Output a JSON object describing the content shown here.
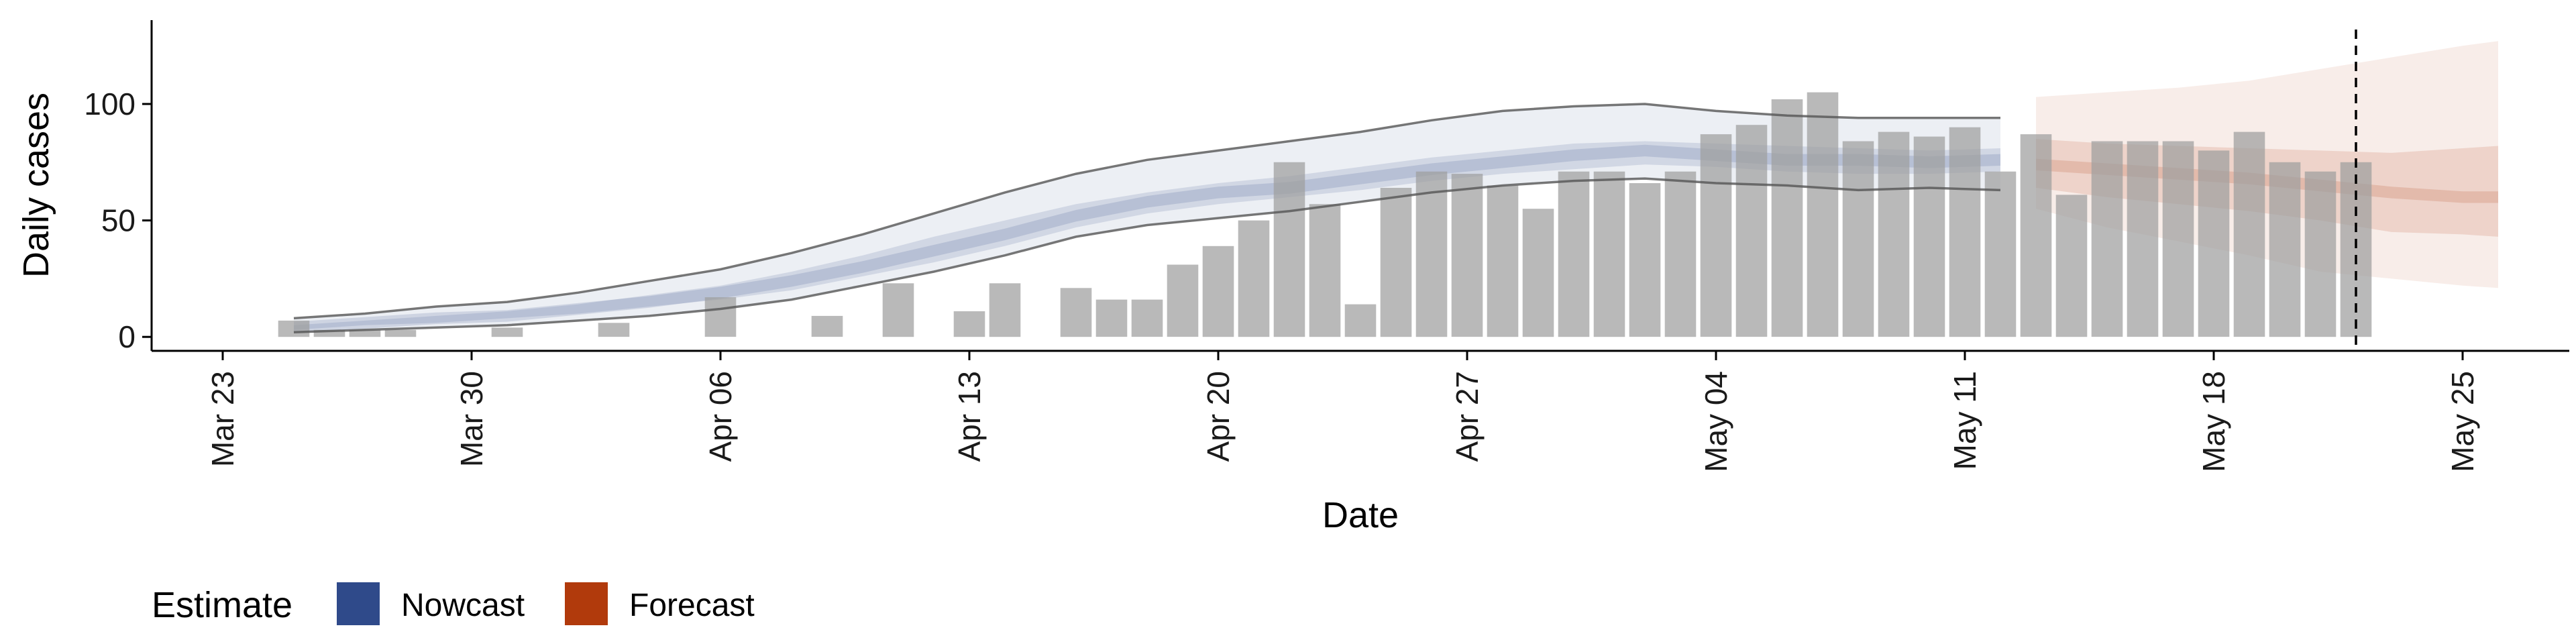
{
  "chart_data": {
    "type": "bar",
    "xlabel": "Date",
    "ylabel": "Daily cases",
    "xlim": [
      "2020-03-21",
      "2020-05-28"
    ],
    "ylim": [
      -6,
      136
    ],
    "y_ticks": [
      0,
      50,
      100
    ],
    "x_ticks": [
      {
        "date": "2020-03-23",
        "label": "Mar 23"
      },
      {
        "date": "2020-03-30",
        "label": "Mar 30"
      },
      {
        "date": "2020-04-06",
        "label": "Apr 06"
      },
      {
        "date": "2020-04-13",
        "label": "Apr 13"
      },
      {
        "date": "2020-04-20",
        "label": "Apr 20"
      },
      {
        "date": "2020-04-27",
        "label": "Apr 27"
      },
      {
        "date": "2020-05-04",
        "label": "May 04"
      },
      {
        "date": "2020-05-11",
        "label": "May 11"
      },
      {
        "date": "2020-05-18",
        "label": "May 18"
      },
      {
        "date": "2020-05-25",
        "label": "May 25"
      }
    ],
    "grid": false,
    "legend_position": "bottom-left",
    "reference_line_date": "2020-05-22",
    "reported_cases": {
      "dates": [
        "2020-03-25",
        "2020-03-26",
        "2020-03-27",
        "2020-03-28",
        "2020-03-29",
        "2020-03-30",
        "2020-03-31",
        "2020-04-01",
        "2020-04-02",
        "2020-04-03",
        "2020-04-04",
        "2020-04-05",
        "2020-04-06",
        "2020-04-07",
        "2020-04-08",
        "2020-04-09",
        "2020-04-10",
        "2020-04-11",
        "2020-04-12",
        "2020-04-13",
        "2020-04-14",
        "2020-04-15",
        "2020-04-16",
        "2020-04-17",
        "2020-04-18",
        "2020-04-19",
        "2020-04-20",
        "2020-04-21",
        "2020-04-22",
        "2020-04-23",
        "2020-04-24",
        "2020-04-25",
        "2020-04-26",
        "2020-04-27",
        "2020-04-28",
        "2020-04-29",
        "2020-04-30",
        "2020-05-01",
        "2020-05-02",
        "2020-05-03",
        "2020-05-04",
        "2020-05-05",
        "2020-05-06",
        "2020-05-07",
        "2020-05-08",
        "2020-05-09",
        "2020-05-10",
        "2020-05-11",
        "2020-05-12",
        "2020-05-13",
        "2020-05-14",
        "2020-05-15",
        "2020-05-16",
        "2020-05-17",
        "2020-05-18",
        "2020-05-19",
        "2020-05-20",
        "2020-05-21",
        "2020-05-22"
      ],
      "values": [
        7,
        3,
        3,
        3,
        0,
        0,
        4,
        0,
        0,
        6,
        0,
        0,
        17,
        0,
        0,
        9,
        0,
        23,
        0,
        11,
        23,
        0,
        21,
        16,
        16,
        31,
        39,
        50,
        75,
        57,
        14,
        64,
        71,
        70,
        65,
        55,
        71,
        71,
        66,
        71,
        87,
        91,
        102,
        105,
        84,
        88,
        86,
        90,
        71,
        87,
        61,
        84,
        84,
        84,
        80,
        88,
        75,
        71,
        75
      ]
    },
    "estimates": [
      {
        "name": "Nowcast",
        "color": "#2f4a8a",
        "dates": [
          "2020-03-25",
          "2020-03-27",
          "2020-03-29",
          "2020-03-31",
          "2020-04-02",
          "2020-04-04",
          "2020-04-06",
          "2020-04-08",
          "2020-04-10",
          "2020-04-12",
          "2020-04-14",
          "2020-04-16",
          "2020-04-18",
          "2020-04-20",
          "2020-04-22",
          "2020-04-24",
          "2020-04-26",
          "2020-04-28",
          "2020-04-30",
          "2020-05-02",
          "2020-05-04",
          "2020-05-06",
          "2020-05-08",
          "2020-05-10",
          "2020-05-12"
        ],
        "upper90": [
          8,
          10,
          13,
          15,
          19,
          24,
          29,
          36,
          44,
          53,
          62,
          70,
          76,
          80,
          84,
          88,
          93,
          97,
          99,
          100,
          97,
          95,
          94,
          94,
          94
        ],
        "upper50": [
          5,
          7,
          9,
          11,
          14,
          18,
          22,
          28,
          35,
          43,
          50,
          57,
          62,
          66,
          69,
          73,
          77,
          80,
          83,
          84,
          83,
          82,
          81,
          80,
          81
        ],
        "median": [
          4,
          6,
          8,
          9,
          12,
          15,
          19,
          24,
          30,
          37,
          44,
          52,
          58,
          62,
          64,
          68,
          72,
          75,
          78,
          80,
          78,
          76,
          76,
          75,
          76
        ],
        "lower50": [
          3,
          5,
          6,
          8,
          10,
          13,
          16,
          20,
          26,
          32,
          39,
          47,
          53,
          57,
          60,
          63,
          67,
          70,
          72,
          74,
          73,
          71,
          70,
          70,
          71
        ],
        "lower90": [
          2,
          3,
          4,
          5,
          7,
          9,
          12,
          16,
          22,
          28,
          35,
          43,
          48,
          51,
          54,
          58,
          62,
          65,
          67,
          68,
          66,
          65,
          63,
          64,
          63
        ]
      },
      {
        "name": "Forecast",
        "color": "#b13a0c",
        "dates": [
          "2020-05-13",
          "2020-05-15",
          "2020-05-17",
          "2020-05-19",
          "2020-05-21",
          "2020-05-23",
          "2020-05-25",
          "2020-05-26"
        ],
        "upper90": [
          103,
          105,
          107,
          110,
          115,
          120,
          125,
          127
        ],
        "upper50": [
          85,
          83,
          82,
          81,
          80,
          79,
          81,
          82
        ],
        "median": [
          74,
          72,
          70,
          68,
          65,
          62,
          60,
          60
        ],
        "lower50": [
          64,
          60,
          57,
          54,
          50,
          45,
          44,
          43
        ],
        "lower90": [
          55,
          47,
          41,
          35,
          28,
          25,
          22,
          21
        ]
      }
    ],
    "legend": {
      "title": "Estimate",
      "entries": [
        {
          "label": "Nowcast",
          "color": "#2f4a8a"
        },
        {
          "label": "Forecast",
          "color": "#b13a0c"
        }
      ]
    }
  }
}
